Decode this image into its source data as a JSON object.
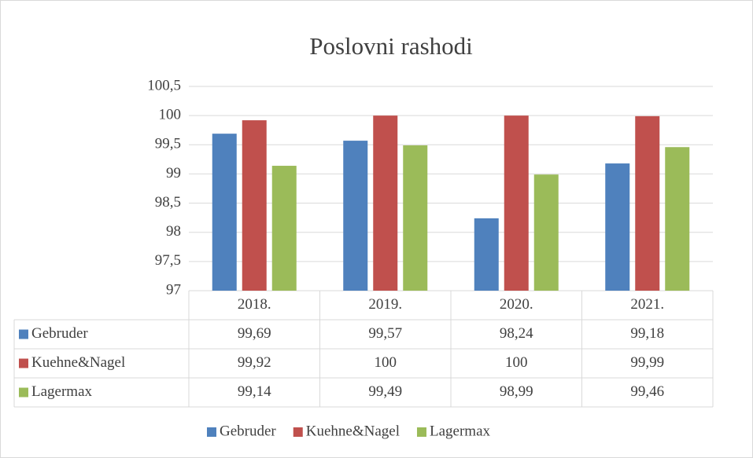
{
  "chart_data": {
    "type": "bar",
    "title": "Poslovni rashodi",
    "categories": [
      "2018.",
      "2019.",
      "2020.",
      "2021."
    ],
    "series": [
      {
        "name": "Gebruder",
        "color": "#4f81bd",
        "values": [
          99.69,
          99.57,
          98.24,
          99.18
        ],
        "value_labels": [
          "99,69",
          "99,57",
          "98,24",
          "99,18"
        ]
      },
      {
        "name": "Kuehne&Nagel",
        "color": "#c0504d",
        "values": [
          99.92,
          100,
          100,
          99.99
        ],
        "value_labels": [
          "99,92",
          "100",
          "100",
          "99,99"
        ]
      },
      {
        "name": "Lagermax",
        "color": "#9bbb59",
        "values": [
          99.14,
          99.49,
          98.99,
          99.46
        ],
        "value_labels": [
          "99,14",
          "99,49",
          "98,99",
          "99,46"
        ]
      }
    ],
    "ylim": [
      97,
      100.5
    ],
    "yticks": [
      97,
      {
        "value": 97.5,
        "label": "97,5"
      },
      98,
      {
        "value": 98.5,
        "label": "98,5"
      },
      99,
      {
        "value": 99.5,
        "label": "99,5"
      },
      100,
      {
        "value": 100.5,
        "label": "100,5"
      }
    ],
    "grid": true,
    "legend": "bottom"
  }
}
